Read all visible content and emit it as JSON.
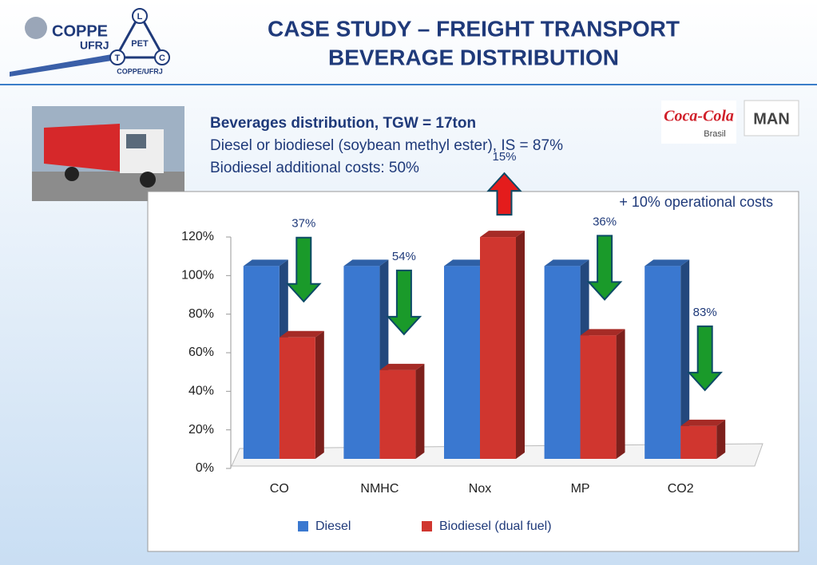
{
  "header": {
    "title_lines": [
      "CASE STUDY – FREIGHT TRANSPORT",
      "BEVERAGE DISTRIBUTION"
    ],
    "logos": {
      "coppe": "COPPE",
      "ufrj": "UFRJ",
      "pet": "PET",
      "pet_l": "L",
      "pet_t": "T",
      "pet_c": "C",
      "pet_caption": "COPPE/UFRJ",
      "coca": "Coca-Cola",
      "coca_sub": "Brasil",
      "man": "MAN"
    }
  },
  "text": {
    "lines": [
      "Beverages distribution, TGW = 17ton",
      "Diesel or biodiesel (soybean methyl ester), IS = 87%",
      "Biodiesel additional costs: 50%"
    ]
  },
  "chart_data": {
    "type": "bar3d",
    "categories": [
      "CO",
      "NMHC",
      "Nox",
      "MP",
      "CO2"
    ],
    "series": [
      {
        "name": "Diesel",
        "color": "#3a78d0",
        "values": [
          100,
          100,
          100,
          100,
          100
        ]
      },
      {
        "name": "Biodiesel (dual fuel)",
        "color": "#d0362f",
        "values": [
          63,
          46,
          115,
          64,
          17
        ]
      }
    ],
    "change_labels": [
      "37%",
      "54%",
      "15%",
      "36%",
      "83%"
    ],
    "annotation": "+ 10% operational costs",
    "ylim": [
      0,
      120
    ],
    "yticks": [
      {
        "value": 0,
        "label": "0%"
      },
      {
        "value": 20,
        "label": "20%"
      },
      {
        "value": 40,
        "label": "40%"
      },
      {
        "value": 60,
        "label": "60%"
      },
      {
        "value": 80,
        "label": "80%"
      },
      {
        "value": 100,
        "label": "100%"
      },
      {
        "value": 120,
        "label": "120%"
      }
    ],
    "legend": "bottom"
  }
}
